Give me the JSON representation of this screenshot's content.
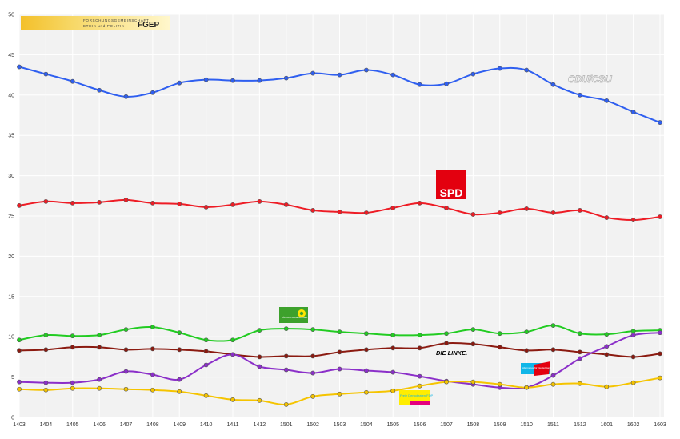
{
  "header": {
    "logo_line1": "FORSCHUNGSGEMEINSCHAFT",
    "logo_line2": "ETHIK und POLITIK",
    "logo_brand": "FGEP"
  },
  "party_labels": {
    "cdu": "CDU/CSU",
    "spd": "SPD",
    "gruene": "BÜNDNIS 90 DIE GRÜNEN",
    "linke": "DIE LINKE.",
    "afd": "Alternative für Deutschland",
    "fdp": "Freie Demokraten FDP"
  },
  "chart_data": {
    "type": "line",
    "categories": [
      "1403",
      "1404",
      "1405",
      "1406",
      "1407",
      "1408",
      "1409",
      "1410",
      "1411",
      "1412",
      "1501",
      "1502",
      "1503",
      "1504",
      "1505",
      "1506",
      "1507",
      "1508",
      "1509",
      "1510",
      "1511",
      "1512",
      "1601",
      "1602",
      "1603"
    ],
    "ylim": [
      0,
      50
    ],
    "yticks": [
      0,
      5,
      10,
      15,
      20,
      25,
      30,
      35,
      40,
      45,
      50
    ],
    "grid": true,
    "series": [
      {
        "name": "CDU/CSU",
        "color": "#2f5ff0",
        "values": [
          43.5,
          42.6,
          41.7,
          40.6,
          39.8,
          40.3,
          41.5,
          41.9,
          41.8,
          41.8,
          42.1,
          42.7,
          42.5,
          43.1,
          42.5,
          41.3,
          41.4,
          42.6,
          43.3,
          43.1,
          41.3,
          40.0,
          39.3,
          37.9,
          36.6
        ]
      },
      {
        "name": "SPD",
        "color": "#ee1c25",
        "values": [
          26.3,
          26.8,
          26.6,
          26.7,
          27.0,
          26.6,
          26.5,
          26.1,
          26.4,
          26.8,
          26.4,
          25.7,
          25.5,
          25.4,
          26.0,
          26.6,
          26.0,
          25.2,
          25.4,
          25.9,
          25.4,
          25.7,
          24.8,
          24.5,
          24.9
        ]
      },
      {
        "name": "Grüne",
        "color": "#22cc22",
        "values": [
          9.6,
          10.2,
          10.1,
          10.2,
          10.9,
          11.2,
          10.5,
          9.6,
          9.6,
          10.8,
          11.0,
          10.9,
          10.6,
          10.4,
          10.2,
          10.2,
          10.4,
          10.9,
          10.4,
          10.6,
          11.4,
          10.4,
          10.3,
          10.7,
          10.8
        ]
      },
      {
        "name": "Die Linke",
        "color": "#8b1a10",
        "values": [
          8.3,
          8.4,
          8.7,
          8.7,
          8.4,
          8.5,
          8.4,
          8.2,
          7.8,
          7.5,
          7.6,
          7.6,
          8.1,
          8.4,
          8.6,
          8.6,
          9.2,
          9.1,
          8.7,
          8.3,
          8.4,
          8.1,
          7.8,
          7.5,
          7.9
        ]
      },
      {
        "name": "AfD",
        "color": "#8b2fc9",
        "values": [
          4.4,
          4.3,
          4.3,
          4.7,
          5.7,
          5.3,
          4.7,
          6.5,
          7.8,
          6.3,
          5.9,
          5.5,
          6.0,
          5.8,
          5.6,
          5.1,
          4.5,
          4.1,
          3.7,
          3.7,
          5.2,
          7.3,
          8.8,
          10.2,
          10.5
        ]
      },
      {
        "name": "FDP",
        "color": "#f5c400",
        "values": [
          3.5,
          3.4,
          3.6,
          3.6,
          3.5,
          3.4,
          3.2,
          2.7,
          2.2,
          2.1,
          1.6,
          2.6,
          2.9,
          3.1,
          3.3,
          3.9,
          4.4,
          4.4,
          4.1,
          3.7,
          4.1,
          4.2,
          3.8,
          4.3,
          4.9
        ]
      }
    ]
  }
}
